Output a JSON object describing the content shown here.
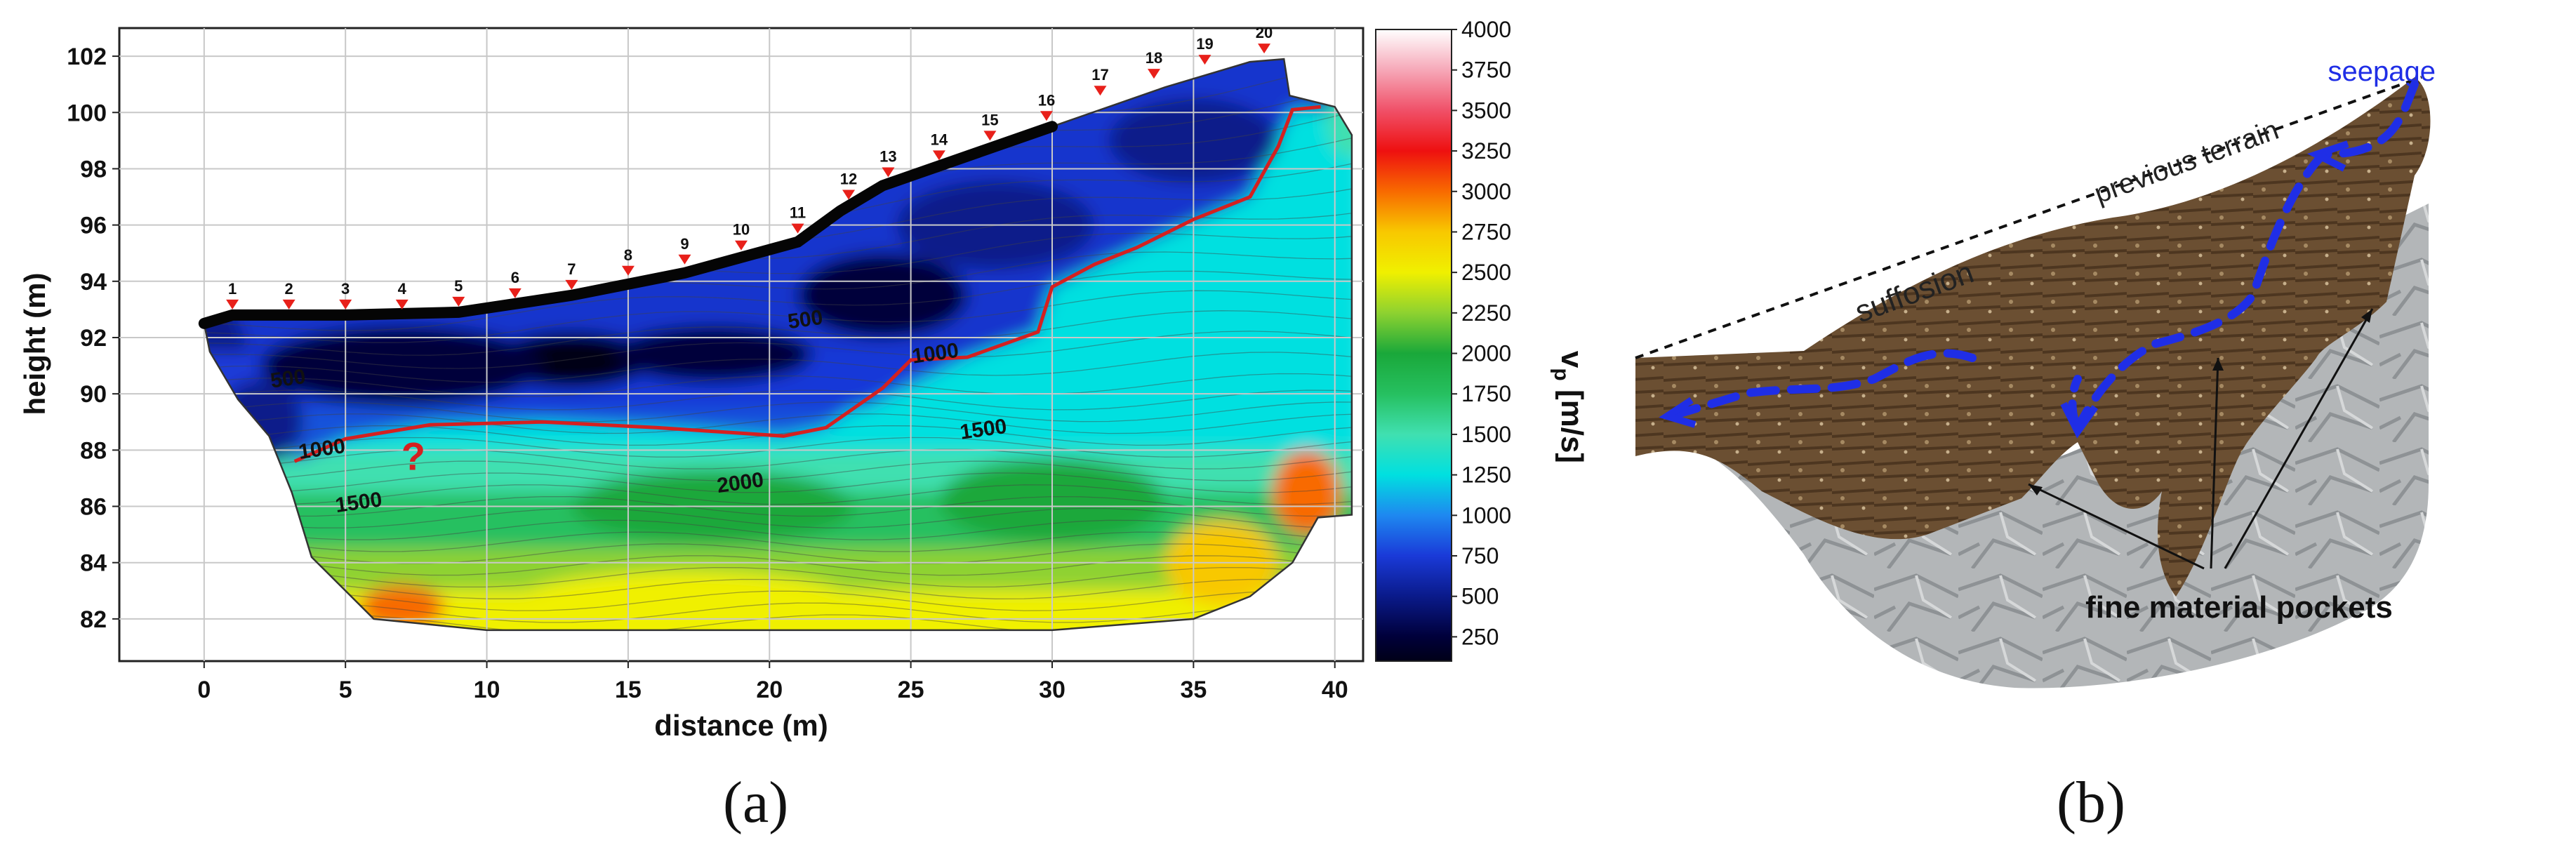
{
  "chart_data": {
    "type": "heatmap",
    "subtype": "seismic refraction tomography section",
    "xlabel": "distance (m)",
    "ylabel": "height (m)",
    "xlim": [
      -3,
      41
    ],
    "ylim": [
      80.5,
      103
    ],
    "x_ticks": [
      "0",
      "5",
      "10",
      "15",
      "20",
      "25",
      "30",
      "35",
      "40"
    ],
    "y_ticks": [
      "82",
      "84",
      "86",
      "88",
      "90",
      "92",
      "94",
      "96",
      "98",
      "100",
      "102"
    ],
    "grid": true,
    "colorbar": {
      "label": "vp [m/s]",
      "label_main": "v",
      "label_sub": "p",
      "label_unit": " [m/s]",
      "ticks": [
        "4000",
        "3750",
        "3500",
        "3250",
        "3000",
        "2750",
        "2500",
        "2250",
        "2000",
        "1750",
        "1500",
        "1250",
        "1000",
        "750",
        "500",
        "250"
      ],
      "range": [
        100,
        4000
      ],
      "stops": [
        {
          "v": 100,
          "color": "#000018"
        },
        {
          "v": 250,
          "color": "#00003a"
        },
        {
          "v": 500,
          "color": "#0a1a8a"
        },
        {
          "v": 750,
          "color": "#1a3ad8"
        },
        {
          "v": 1000,
          "color": "#1e88f0"
        },
        {
          "v": 1250,
          "color": "#00e0e0"
        },
        {
          "v": 1500,
          "color": "#40e0b0"
        },
        {
          "v": 1750,
          "color": "#26c060"
        },
        {
          "v": 2000,
          "color": "#1aa83a"
        },
        {
          "v": 2250,
          "color": "#8ed230"
        },
        {
          "v": 2500,
          "color": "#f0f000"
        },
        {
          "v": 2750,
          "color": "#f8c800"
        },
        {
          "v": 3000,
          "color": "#f86a00"
        },
        {
          "v": 3250,
          "color": "#ee1010"
        },
        {
          "v": 3500,
          "color": "#f05068"
        },
        {
          "v": 3750,
          "color": "#f6a8b8"
        },
        {
          "v": 4000,
          "color": "#ffffff"
        }
      ]
    },
    "geophones": [
      {
        "label": "1",
        "x": 1.0,
        "y": 92.9
      },
      {
        "label": "2",
        "x": 3.0,
        "y": 92.9
      },
      {
        "label": "3",
        "x": 5.0,
        "y": 92.9
      },
      {
        "label": "4",
        "x": 7.0,
        "y": 92.9
      },
      {
        "label": "5",
        "x": 9.0,
        "y": 93.0
      },
      {
        "label": "6",
        "x": 11.0,
        "y": 93.3
      },
      {
        "label": "7",
        "x": 13.0,
        "y": 93.6
      },
      {
        "label": "8",
        "x": 15.0,
        "y": 94.1
      },
      {
        "label": "9",
        "x": 17.0,
        "y": 94.5
      },
      {
        "label": "10",
        "x": 19.0,
        "y": 95.0
      },
      {
        "label": "11",
        "x": 21.0,
        "y": 95.6
      },
      {
        "label": "12",
        "x": 22.8,
        "y": 96.8
      },
      {
        "label": "13",
        "x": 24.2,
        "y": 97.6
      },
      {
        "label": "14",
        "x": 26.0,
        "y": 98.2
      },
      {
        "label": "15",
        "x": 27.8,
        "y": 98.9
      },
      {
        "label": "16",
        "x": 29.8,
        "y": 99.6
      },
      {
        "label": "17",
        "x": 31.7,
        "y": 100.5
      },
      {
        "label": "18",
        "x": 33.6,
        "y": 101.1
      },
      {
        "label": "19",
        "x": 35.4,
        "y": 101.6
      },
      {
        "label": "20",
        "x": 37.5,
        "y": 102.0
      }
    ],
    "contour_labels": [
      {
        "text": "500",
        "x": 3.0,
        "y": 90.3
      },
      {
        "text": "500",
        "x": 21.3,
        "y": 92.4
      },
      {
        "text": "1000",
        "x": 4.2,
        "y": 87.8
      },
      {
        "text": "1000",
        "x": 25.9,
        "y": 91.2
      },
      {
        "text": "1500",
        "x": 5.5,
        "y": 85.9
      },
      {
        "text": "1500",
        "x": 27.6,
        "y": 88.5
      },
      {
        "text": "2000",
        "x": 19.0,
        "y": 86.6
      }
    ],
    "interface_line": {
      "value": 1000,
      "color": "#d42020",
      "points": [
        [
          3.2,
          87.6
        ],
        [
          5,
          88.4
        ],
        [
          8,
          88.9
        ],
        [
          12,
          89.0
        ],
        [
          16,
          88.8
        ],
        [
          20.5,
          88.5
        ],
        [
          22,
          88.8
        ],
        [
          24,
          90.2
        ],
        [
          25,
          91.2
        ],
        [
          27,
          91.3
        ],
        [
          29.5,
          92.2
        ],
        [
          30,
          93.8
        ],
        [
          31.5,
          94.6
        ],
        [
          33,
          95.2
        ],
        [
          35,
          96.2
        ],
        [
          37,
          97.0
        ],
        [
          38,
          98.8
        ],
        [
          38.5,
          100.1
        ],
        [
          39.5,
          100.2
        ]
      ]
    },
    "question_mark": {
      "text": "?",
      "x": 7.4,
      "y": 87.3,
      "color": "#d42020"
    },
    "section_outline": [
      [
        0,
        92.5
      ],
      [
        1,
        92.8
      ],
      [
        5,
        92.8
      ],
      [
        9,
        92.9
      ],
      [
        13,
        93.5
      ],
      [
        17,
        94.3
      ],
      [
        21,
        95.4
      ],
      [
        22.5,
        96.5
      ],
      [
        24,
        97.4
      ],
      [
        26,
        98.1
      ],
      [
        30,
        99.5
      ],
      [
        34,
        100.9
      ],
      [
        37,
        101.8
      ],
      [
        38.2,
        101.9
      ],
      [
        38.4,
        100.6
      ],
      [
        40,
        100.2
      ],
      [
        40.6,
        99.2
      ],
      [
        40.6,
        85.7
      ],
      [
        39.4,
        85.6
      ],
      [
        38.5,
        84.0
      ],
      [
        37.0,
        82.8
      ],
      [
        35.0,
        82.0
      ],
      [
        30.0,
        81.6
      ],
      [
        20.0,
        81.6
      ],
      [
        10.0,
        81.6
      ],
      [
        6.0,
        82.0
      ],
      [
        5.0,
        83.0
      ],
      [
        3.8,
        84.2
      ],
      [
        3.1,
        86.5
      ],
      [
        2.3,
        88.5
      ],
      [
        1.2,
        89.8
      ],
      [
        0.2,
        91.5
      ],
      [
        0,
        92.5
      ]
    ],
    "anomalies": [
      {
        "x": 13,
        "y": 91.2,
        "v": 150,
        "sx": 2.8,
        "sy": 1.0
      },
      {
        "x": 18,
        "y": 91.4,
        "v": 300,
        "sx": 3.5,
        "sy": 1.0
      },
      {
        "x": 24,
        "y": 93.5,
        "v": 400,
        "sx": 3.0,
        "sy": 1.5
      },
      {
        "x": 7,
        "y": 91.0,
        "v": 500,
        "sx": 5.0,
        "sy": 1.4
      },
      {
        "x": 28,
        "y": 96.0,
        "v": 650,
        "sx": 3.5,
        "sy": 1.6
      },
      {
        "x": 35,
        "y": 99.0,
        "v": 600,
        "sx": 3.0,
        "sy": 1.5
      },
      {
        "x": 2,
        "y": 89,
        "v": 700,
        "sx": 1.5,
        "sy": 1.5
      },
      {
        "x": 18,
        "y": 86.0,
        "v": 2050,
        "sx": 5.0,
        "sy": 1.3
      },
      {
        "x": 30,
        "y": 86.2,
        "v": 2050,
        "sx": 4.0,
        "sy": 1.5
      },
      {
        "x": 17,
        "y": 82.6,
        "v": 2550,
        "sx": 6.0,
        "sy": 1.1
      },
      {
        "x": 7,
        "y": 82.4,
        "v": 3200,
        "sx": 1.5,
        "sy": 0.8
      },
      {
        "x": 39,
        "y": 86.5,
        "v": 3250,
        "sx": 1.2,
        "sy": 1.5
      },
      {
        "x": 36,
        "y": 84,
        "v": 2900,
        "sx": 2,
        "sy": 1.5
      },
      {
        "x": 40.5,
        "y": 99.6,
        "v": 1700,
        "sx": 0.8,
        "sy": 1.2
      }
    ],
    "panel_label": "(a)"
  },
  "photo_panel": {
    "panel_label": "(b)",
    "annotations": {
      "seepage": "seepage",
      "previous_terrain": "previous terrain",
      "suffosion": "suffosion",
      "fine_material_pockets": "fine material pockets"
    },
    "colors": {
      "seepage_arrow": "#1f2ee6",
      "soil": "#6b4f32",
      "rock": "#b9bcbe"
    }
  }
}
